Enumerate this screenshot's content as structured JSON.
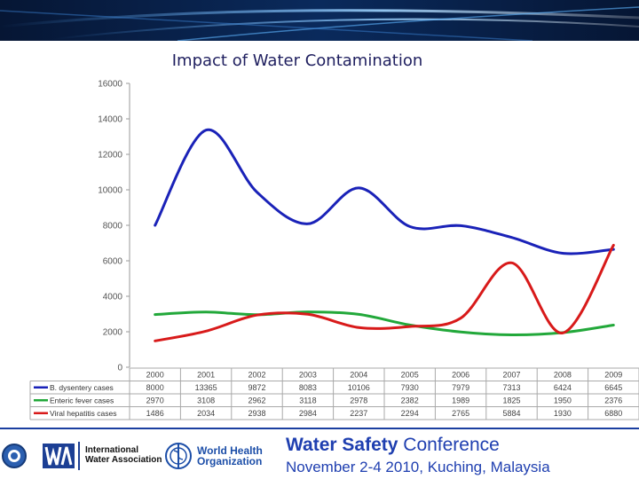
{
  "header": {
    "title": "Impact of Water Contamination"
  },
  "chart_data": {
    "type": "line",
    "title": "Impact of Water Contamination",
    "ylim": [
      0,
      16000
    ],
    "yticks": [
      0,
      2000,
      4000,
      6000,
      8000,
      10000,
      12000,
      14000,
      16000
    ],
    "categories": [
      "2000",
      "2001",
      "2002",
      "2003",
      "2004",
      "2005",
      "2006",
      "2007",
      "2008",
      "2009"
    ],
    "grid": false,
    "legend": "data-table-below",
    "series": [
      {
        "name": "B. dysentery cases",
        "color": "#1a22b8",
        "values": [
          8000,
          13365,
          9872,
          8083,
          10106,
          7930,
          7979,
          7313,
          6424,
          6645
        ]
      },
      {
        "name": "Enteric fever cases",
        "color": "#22a83a",
        "values": [
          2970,
          3108,
          2962,
          3118,
          2978,
          2382,
          1989,
          1825,
          1950,
          2376
        ]
      },
      {
        "name": "Viral hepatitis cases",
        "color": "#d81a1a",
        "values": [
          1486,
          2034,
          2938,
          2984,
          2237,
          2294,
          2765,
          5884,
          1930,
          6880
        ]
      }
    ]
  },
  "footer": {
    "logo_iwa_text": "International Water Association",
    "logo_iwa_line1": "International",
    "logo_iwa_line2": "Water Association",
    "logo_who_line1": "World Health",
    "logo_who_line2": "Organization",
    "conference_bold": "Water Safety",
    "conference_rest": " Conference",
    "conference_dates": "November 2-4 2010, Kuching, Malaysia"
  }
}
